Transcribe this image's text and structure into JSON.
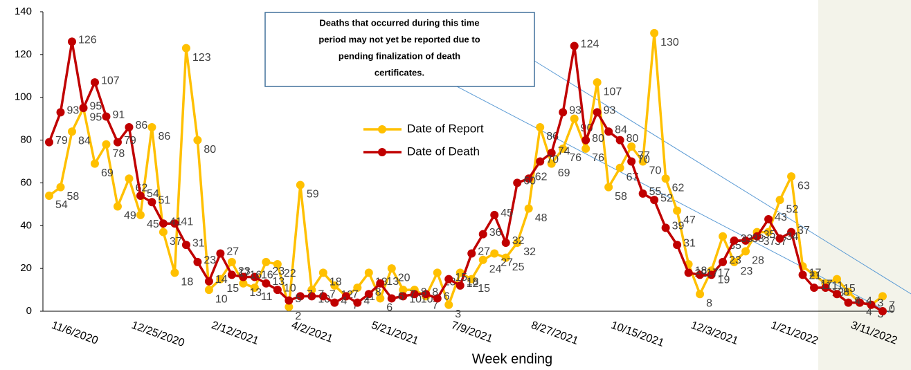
{
  "chart_data": {
    "type": "line",
    "x_label": "Week ending",
    "annotation": [
      "Deaths that occurred during this time",
      "period may not yet be reported due to",
      "pending finalization of death",
      "certificates."
    ],
    "categories": [
      "11/6/2020",
      null,
      null,
      null,
      null,
      null,
      null,
      "12/25/2020",
      null,
      null,
      null,
      null,
      null,
      null,
      "2/12/2021",
      null,
      null,
      null,
      null,
      null,
      null,
      "4/2/2021",
      null,
      null,
      null,
      null,
      null,
      null,
      "5/21/2021",
      null,
      null,
      null,
      null,
      null,
      null,
      "7/9/2021",
      null,
      null,
      null,
      null,
      null,
      null,
      "8/27/2021",
      null,
      null,
      null,
      null,
      null,
      null,
      "10/15/2021",
      null,
      null,
      null,
      null,
      null,
      null,
      "12/3/2021",
      null,
      null,
      null,
      null,
      null,
      null,
      "1/21/2022",
      null,
      null,
      null,
      null,
      null,
      null,
      "3/11/2022",
      null,
      null,
      null
    ],
    "series": [
      {
        "name": "Date of Report",
        "color": "#ffc000",
        "values": [
          54,
          58,
          84,
          95,
          69,
          78,
          49,
          62,
          45,
          86,
          37,
          18,
          123,
          80,
          10,
          15,
          23,
          13,
          11,
          23,
          22,
          2,
          59,
          10,
          18,
          12,
          7,
          11,
          18,
          6,
          20,
          10,
          10,
          7,
          18,
          3,
          18,
          15,
          24,
          27,
          25,
          32,
          48,
          86,
          69,
          76,
          90,
          76,
          107,
          58,
          67,
          77,
          70,
          130,
          62,
          47,
          22,
          8,
          19,
          35,
          23,
          28,
          37,
          37,
          52,
          63,
          21,
          17,
          13,
          15,
          9,
          4,
          3,
          7
        ]
      },
      {
        "name": "Date of Death",
        "color": "#c00000",
        "values": [
          79,
          93,
          126,
          95,
          107,
          91,
          79,
          86,
          54,
          51,
          41,
          41,
          31,
          23,
          14,
          27,
          17,
          16,
          16,
          13,
          10,
          5,
          7,
          7,
          7,
          4,
          7,
          4,
          8,
          13,
          6,
          7,
          8,
          8,
          6,
          15,
          12,
          27,
          36,
          45,
          32,
          60,
          62,
          70,
          74,
          93,
          124,
          80,
          93,
          84,
          80,
          70,
          55,
          52,
          39,
          31,
          18,
          17,
          17,
          23,
          33,
          33,
          35,
          43,
          34,
          37,
          17,
          11,
          11,
          8,
          4,
          4,
          3,
          0
        ]
      }
    ],
    "ylim": [
      0,
      140
    ],
    "yticks": [
      0,
      20,
      40,
      60,
      80,
      100,
      120,
      140
    ],
    "grid": false,
    "legend": "center"
  }
}
